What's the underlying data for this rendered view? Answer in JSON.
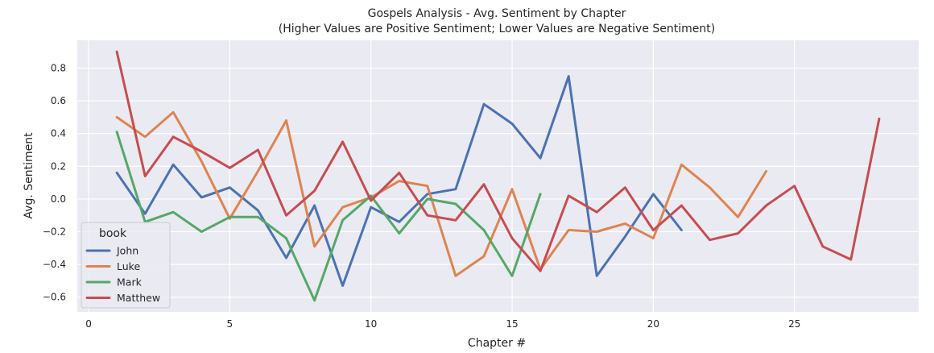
{
  "chart_data": {
    "type": "line",
    "title": "Gospels Analysis - Avg. Sentiment by Chapter",
    "subtitle": "(Higher Values are Positive Sentiment; Lower Values are Negative Sentiment)",
    "xlabel": "Chapter #",
    "ylabel": "Avg. Sentiment",
    "xlim": [
      -0.4,
      29.4
    ],
    "ylim": [
      -0.69,
      0.97
    ],
    "xticks": [
      0,
      5,
      10,
      15,
      20,
      25
    ],
    "xtick_labels": [
      "0",
      "5",
      "10",
      "15",
      "20",
      "25"
    ],
    "yticks": [
      -0.6,
      -0.4,
      -0.2,
      0.0,
      0.2,
      0.4,
      0.6,
      0.8
    ],
    "ytick_labels": [
      "−0.6",
      "−0.4",
      "−0.2",
      "0.0",
      "0.2",
      "0.4",
      "0.6",
      "0.8"
    ],
    "grid": true,
    "legend": {
      "title": "book",
      "placement": "lower-left"
    },
    "series": [
      {
        "name": "John",
        "color": "#4c72b0",
        "x": [
          1,
          2,
          3,
          4,
          5,
          6,
          7,
          8,
          9,
          10,
          11,
          12,
          13,
          14,
          15,
          16,
          17,
          18,
          19,
          20,
          21
        ],
        "y": [
          0.16,
          -0.09,
          0.21,
          0.01,
          0.07,
          -0.07,
          -0.36,
          -0.04,
          -0.53,
          -0.05,
          -0.14,
          0.03,
          0.06,
          0.58,
          0.46,
          0.25,
          0.75,
          -0.47,
          -0.23,
          0.03,
          -0.19
        ]
      },
      {
        "name": "Luke",
        "color": "#dd8452",
        "x": [
          1,
          2,
          3,
          4,
          5,
          6,
          7,
          8,
          9,
          10,
          11,
          12,
          13,
          14,
          15,
          16,
          17,
          18,
          19,
          20,
          21,
          22,
          23,
          24
        ],
        "y": [
          0.5,
          0.38,
          0.53,
          0.23,
          -0.12,
          0.17,
          0.48,
          -0.29,
          -0.05,
          0.01,
          0.11,
          0.08,
          -0.47,
          -0.35,
          0.06,
          -0.43,
          -0.19,
          -0.2,
          -0.15,
          -0.24,
          0.21,
          0.07,
          -0.11,
          0.17
        ]
      },
      {
        "name": "Mark",
        "color": "#55a868",
        "x": [
          1,
          2,
          3,
          4,
          5,
          6,
          7,
          8,
          9,
          10,
          11,
          12,
          13,
          14,
          15,
          16
        ],
        "y": [
          0.41,
          -0.14,
          -0.08,
          -0.2,
          -0.11,
          -0.11,
          -0.24,
          -0.62,
          -0.13,
          0.02,
          -0.21,
          0.0,
          -0.03,
          -0.19,
          -0.47,
          0.03
        ]
      },
      {
        "name": "Matthew",
        "color": "#c44e52",
        "x": [
          1,
          2,
          3,
          4,
          5,
          6,
          7,
          8,
          9,
          10,
          11,
          12,
          13,
          14,
          15,
          16,
          17,
          18,
          19,
          20,
          21,
          22,
          23,
          24,
          25,
          26,
          27,
          28
        ],
        "y": [
          0.9,
          0.14,
          0.38,
          0.29,
          0.19,
          0.3,
          -0.1,
          0.05,
          0.35,
          -0.01,
          0.16,
          -0.1,
          -0.13,
          0.09,
          -0.24,
          -0.44,
          0.02,
          -0.08,
          0.07,
          -0.19,
          -0.04,
          -0.25,
          -0.21,
          -0.04,
          0.08,
          -0.29,
          -0.37,
          0.49
        ]
      }
    ]
  }
}
